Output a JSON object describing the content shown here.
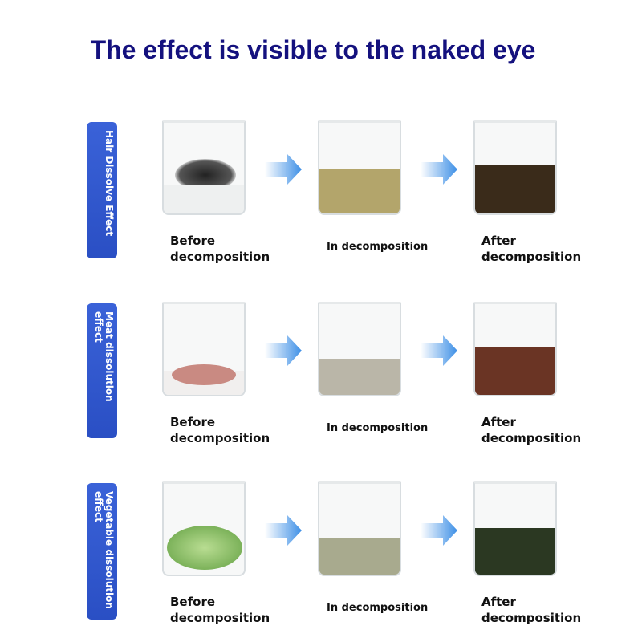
{
  "title": "The effect is visible to the naked eye",
  "rows": [
    {
      "label": "Hair Dissolve Effect",
      "before": "Before\ndecomposition",
      "during": "In decomposition",
      "after": "After\ndecomposition",
      "colors": {
        "before": "#2b2b2e",
        "during": "#b3a56b",
        "after": "#3a2b1a"
      }
    },
    {
      "label": "Meat dissolution effect",
      "before": "Before\ndecomposition",
      "during": "In decomposition",
      "after": "After\ndecomposition",
      "colors": {
        "before": "#c98a82",
        "during": "#bab6a8",
        "after": "#6a3424"
      }
    },
    {
      "label": "Vegetable dissolution effect",
      "before": "Before\ndecomposition",
      "during": "In decomposition",
      "after": "After\ndecomposition",
      "colors": {
        "before": "#7cb25a",
        "during": "#a8aa8e",
        "after": "#2b3822"
      }
    }
  ],
  "arrow_color": "#3d8fe6"
}
